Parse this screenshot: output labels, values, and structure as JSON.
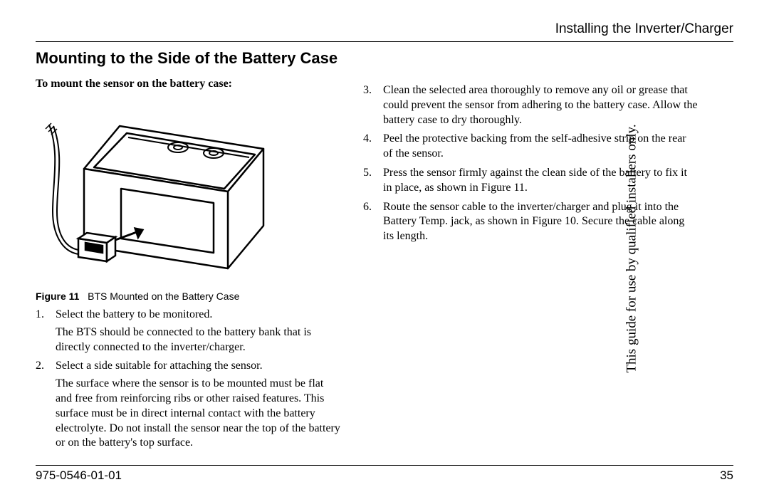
{
  "header": {
    "running_title": "Installing the Inverter/Charger"
  },
  "section": {
    "title": "Mounting to the Side of the Battery Case",
    "intro": "To mount the sensor on the battery case:"
  },
  "figure": {
    "label_bold": "Figure 11",
    "label_rest": "BTS Mounted on the Battery Case",
    "svg": {
      "stroke": "#000000",
      "stroke_width": 2,
      "fill": "#ffffff"
    }
  },
  "steps_left": [
    {
      "n": "1.",
      "text": "Select the battery to be monitored.",
      "sub": "The BTS should be connected to the battery bank that is directly connected to the inverter/charger."
    },
    {
      "n": "2.",
      "text": "Select a side suitable for attaching the sensor.",
      "sub": "The surface where the sensor is to be mounted must be flat and free from reinforcing ribs or other raised features. This surface must be in direct internal contact with the battery electrolyte. Do not install the sensor near the top of the battery or on the battery's top surface."
    }
  ],
  "steps_right": [
    {
      "n": "3.",
      "text": "Clean the selected area thoroughly to remove any oil or grease that could prevent the sensor from adhering to the battery case. Allow the battery case to dry thoroughly."
    },
    {
      "n": "4.",
      "text": "Peel the protective backing from the self-adhesive strip on the rear of the sensor."
    },
    {
      "n": "5.",
      "text": "Press the sensor firmly against the clean side of the battery to fix it in place, as shown in Figure 11."
    },
    {
      "n": "6.",
      "text": "Route the sensor cable to the inverter/charger and plug it into the Battery Temp. jack, as shown in Figure 10. Secure the cable along its length."
    }
  ],
  "side_note": "This guide for use by qualified installers only.",
  "footer": {
    "doc_number": "975-0546-01-01",
    "page_number": "35"
  }
}
